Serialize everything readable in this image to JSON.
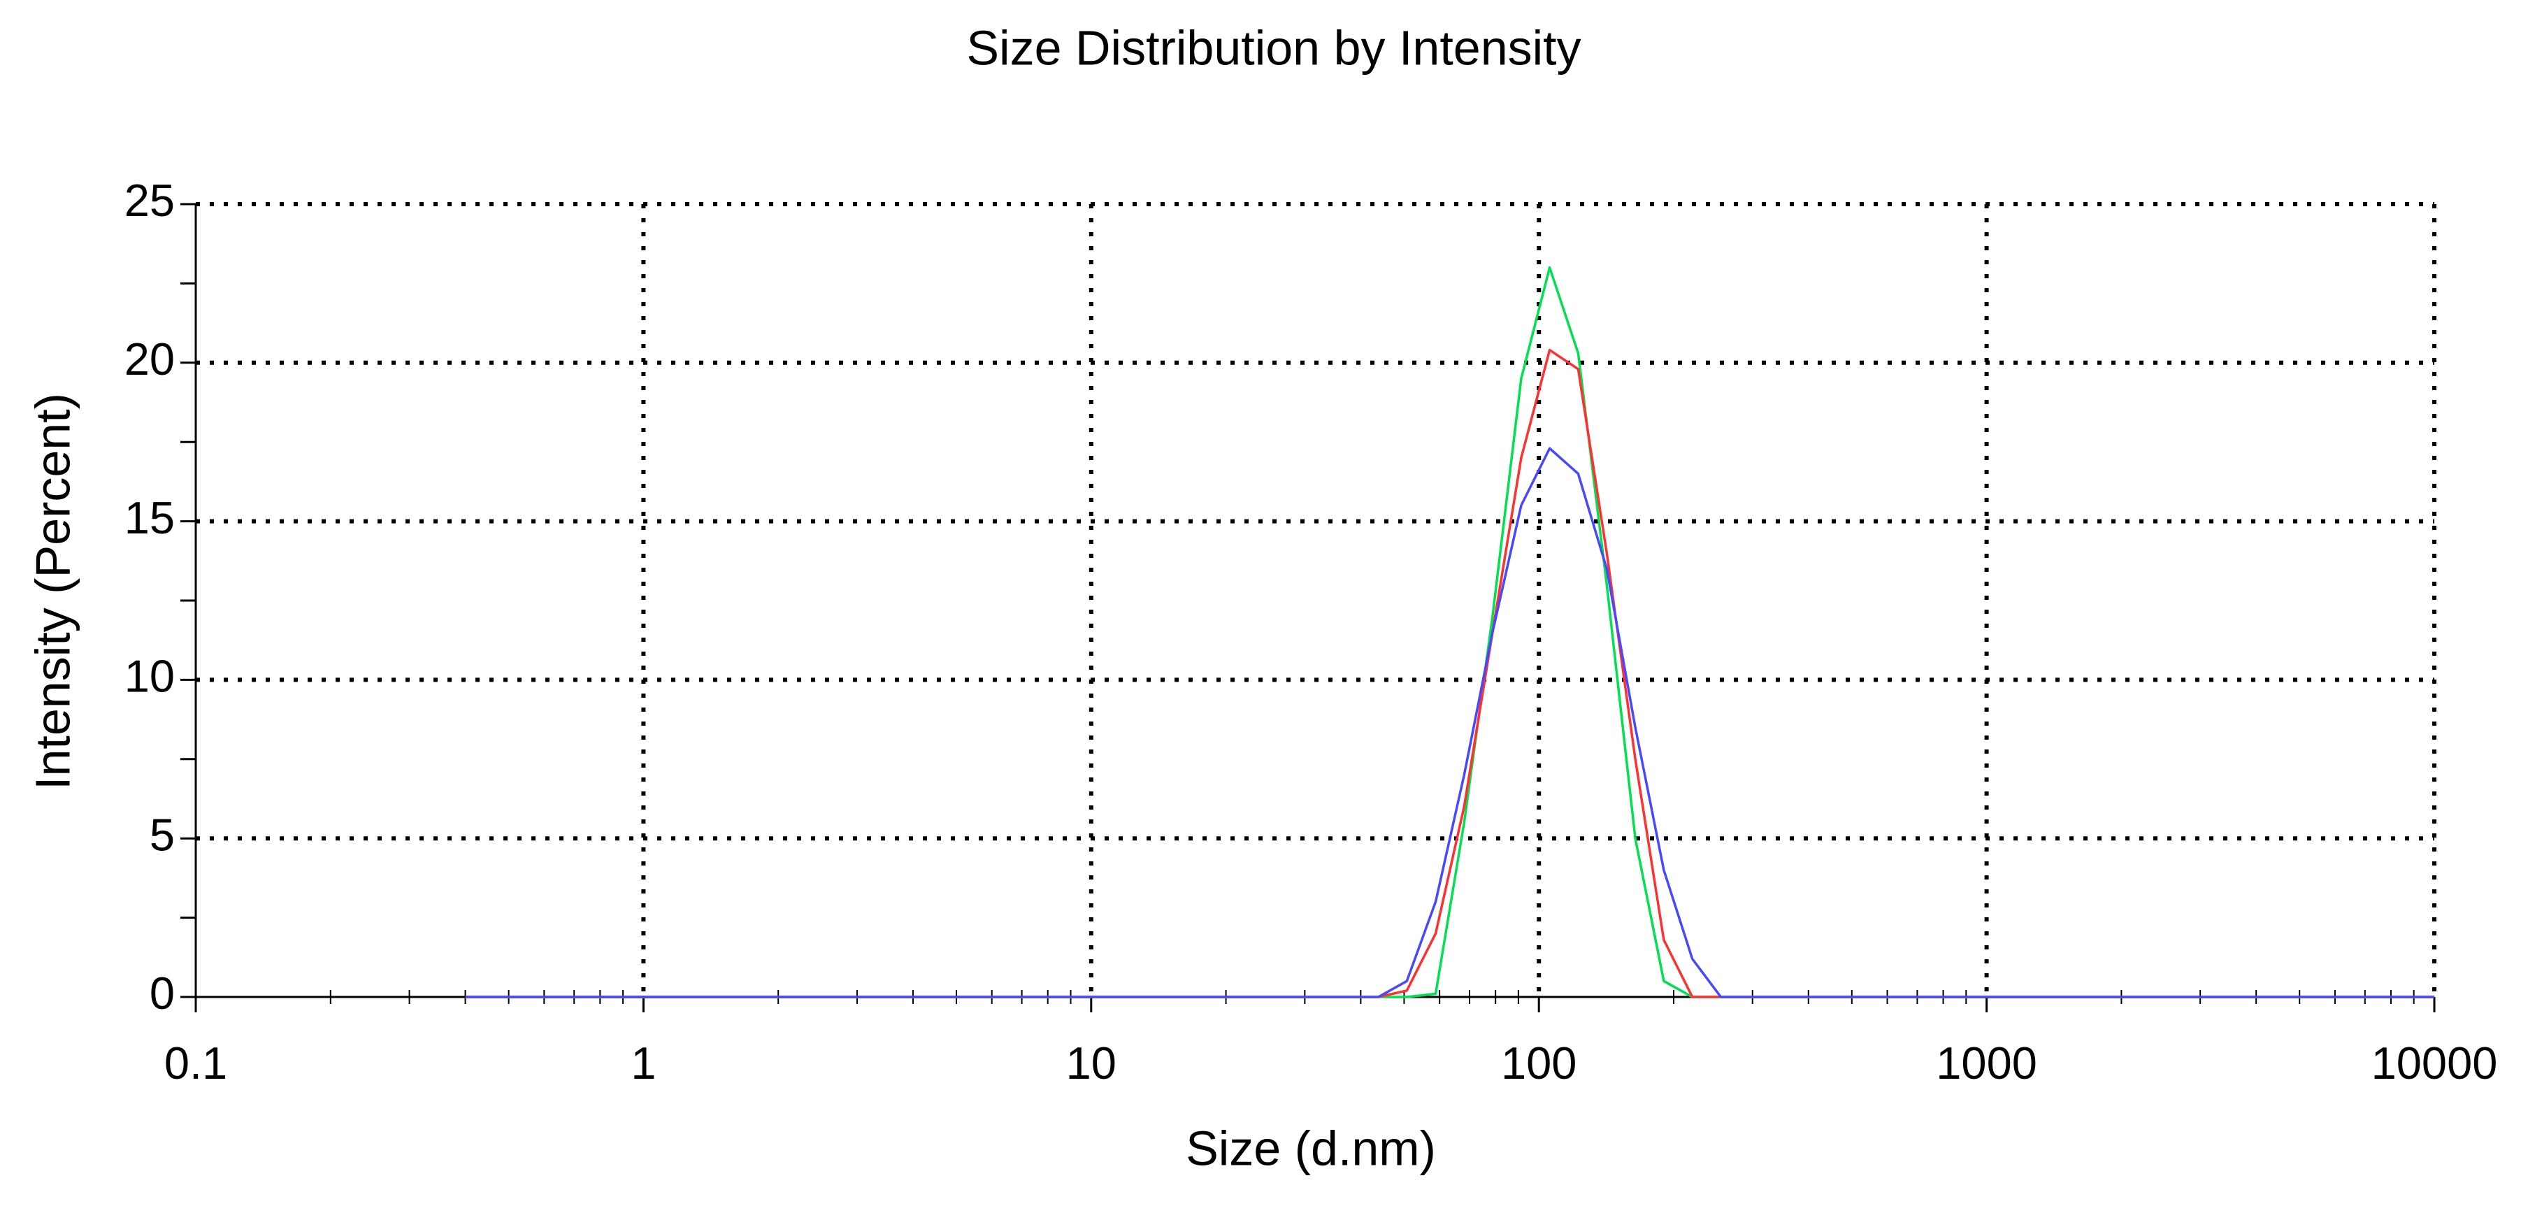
{
  "chart_data": {
    "type": "line",
    "title": "Size Distribution by Intensity",
    "x_label": "Size (d.nm)",
    "y_label": "Intensity (Percent)",
    "log_x": true,
    "grid": true,
    "x": [
      0.4,
      43.8,
      50.7,
      58.8,
      68.1,
      78.8,
      91.3,
      105.7,
      122.4,
      141.8,
      164.2,
      190.1,
      220.2,
      255,
      10000
    ],
    "series": [
      {
        "color": "#00e050",
        "values": [
          0,
          0,
          0,
          0.1,
          5.5,
          12,
          19.5,
          23,
          20.3,
          13,
          5,
          0.5,
          0,
          0,
          0
        ]
      },
      {
        "color": "#ff3030",
        "values": [
          0,
          0,
          0.2,
          2,
          6,
          11.5,
          17,
          20.4,
          19.8,
          14,
          7.5,
          1.8,
          0,
          0,
          0
        ]
      },
      {
        "color": "#4848ff",
        "values": [
          0,
          0,
          0.5,
          3,
          7,
          11.5,
          15.5,
          17.3,
          16.5,
          13.5,
          8.5,
          4,
          1.2,
          0,
          0
        ]
      }
    ],
    "xlim": [
      0.1,
      10000
    ],
    "xticks": [
      0.1,
      1,
      10,
      100,
      1000,
      10000
    ],
    "ylim": [
      0,
      25
    ],
    "yticks": [
      0,
      5,
      10,
      15,
      20,
      25
    ]
  }
}
